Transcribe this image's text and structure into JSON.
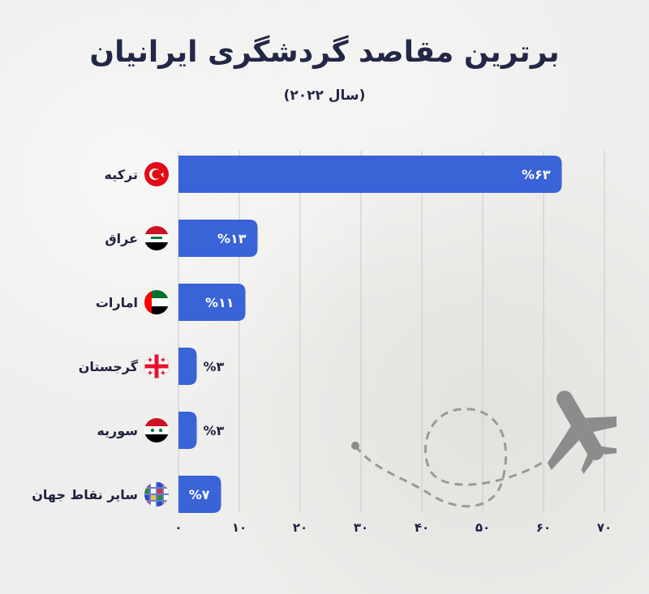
{
  "header": {
    "title": "برترین مقاصد گردشگری ایرانیان",
    "subtitle": "(سال ۲۰۲۲)"
  },
  "colors": {
    "bar": "#3a63d8",
    "text": "#1f2240",
    "grid": "#c9c9c9"
  },
  "chart_data": {
    "type": "bar",
    "orientation": "horizontal",
    "title": "برترین مقاصد گردشگری ایرانیان",
    "subtitle": "(سال ۲۰۲۲)",
    "categories": [
      "ترکیه",
      "عراق",
      "امارات",
      "گرجستان",
      "سوریه",
      "سایر نقاط جهان"
    ],
    "values": [
      63,
      13,
      11,
      3,
      3,
      7
    ],
    "value_labels": [
      "%۶۳",
      "%۱۳",
      "%۱۱",
      "%۳",
      "%۳",
      "%۷"
    ],
    "flag_icons": [
      "flag-turkey-icon",
      "flag-iraq-icon",
      "flag-uae-icon",
      "flag-georgia-icon",
      "flag-syria-icon",
      "world-flags-icon"
    ],
    "xlim": [
      0,
      70
    ],
    "ticks": [
      0,
      10,
      20,
      30,
      40,
      50,
      60,
      70
    ],
    "tick_labels": [
      "۰",
      "۱۰",
      "۲۰",
      "۳۰",
      "۴۰",
      "۵۰",
      "۶۰",
      "۷۰"
    ],
    "grid": true,
    "xlabel": "",
    "ylabel": ""
  }
}
